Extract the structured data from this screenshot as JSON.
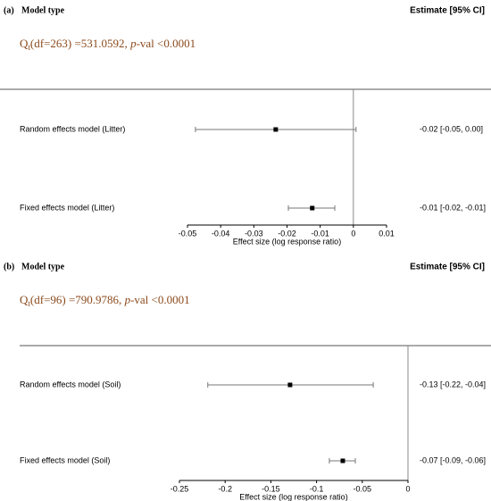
{
  "chart_data": [
    {
      "type": "forest",
      "panel": "(a)",
      "header": "Model type",
      "estimate_header": "Estimate [95% CI]",
      "annotation": [
        "Q",
        "t",
        "(df=263) =531.0592, ",
        "p",
        "-val <0.0001"
      ],
      "rows": [
        "Random effects model (Litter)",
        "Fixed effects model (Litter)"
      ],
      "estimates": [
        -0.0234,
        -0.0124
      ],
      "ci_lower": [
        -0.0476,
        -0.0196
      ],
      "ci_upper": [
        0.0008,
        -0.0056
      ],
      "value_labels": [
        "-0.02 [-0.05,  0.00]",
        "-0.01 [-0.02, -0.01]"
      ],
      "xlabel": "Effect size (log response ratio)",
      "xlim": [
        -0.05,
        0.01
      ],
      "xticks": [
        -0.05,
        -0.04,
        -0.03,
        -0.02,
        -0.01,
        0,
        0.01
      ],
      "color": "#000000"
    },
    {
      "type": "forest",
      "panel": "(b)",
      "header": "Model type",
      "estimate_header": "Estimate [95% CI]",
      "annotation": [
        "Q",
        "t",
        "(df=96) =790.9786, ",
        "p",
        "-val <0.0001"
      ],
      "rows": [
        "Random effects model (Soil)",
        "Fixed effects model (Soil)"
      ],
      "estimates": [
        -0.129,
        -0.0713
      ],
      "ci_lower": [
        -0.219,
        -0.086
      ],
      "ci_upper": [
        -0.038,
        -0.0576
      ],
      "value_labels": [
        "-0.13 [-0.22, -0.04]",
        "-0.07 [-0.09, -0.06]"
      ],
      "xlabel": "Effect size (log response ratio)",
      "xlim": [
        -0.25,
        0
      ],
      "xticks": [
        -0.25,
        -0.2,
        -0.15,
        -0.1,
        -0.05,
        0
      ],
      "color": "#000000"
    }
  ]
}
